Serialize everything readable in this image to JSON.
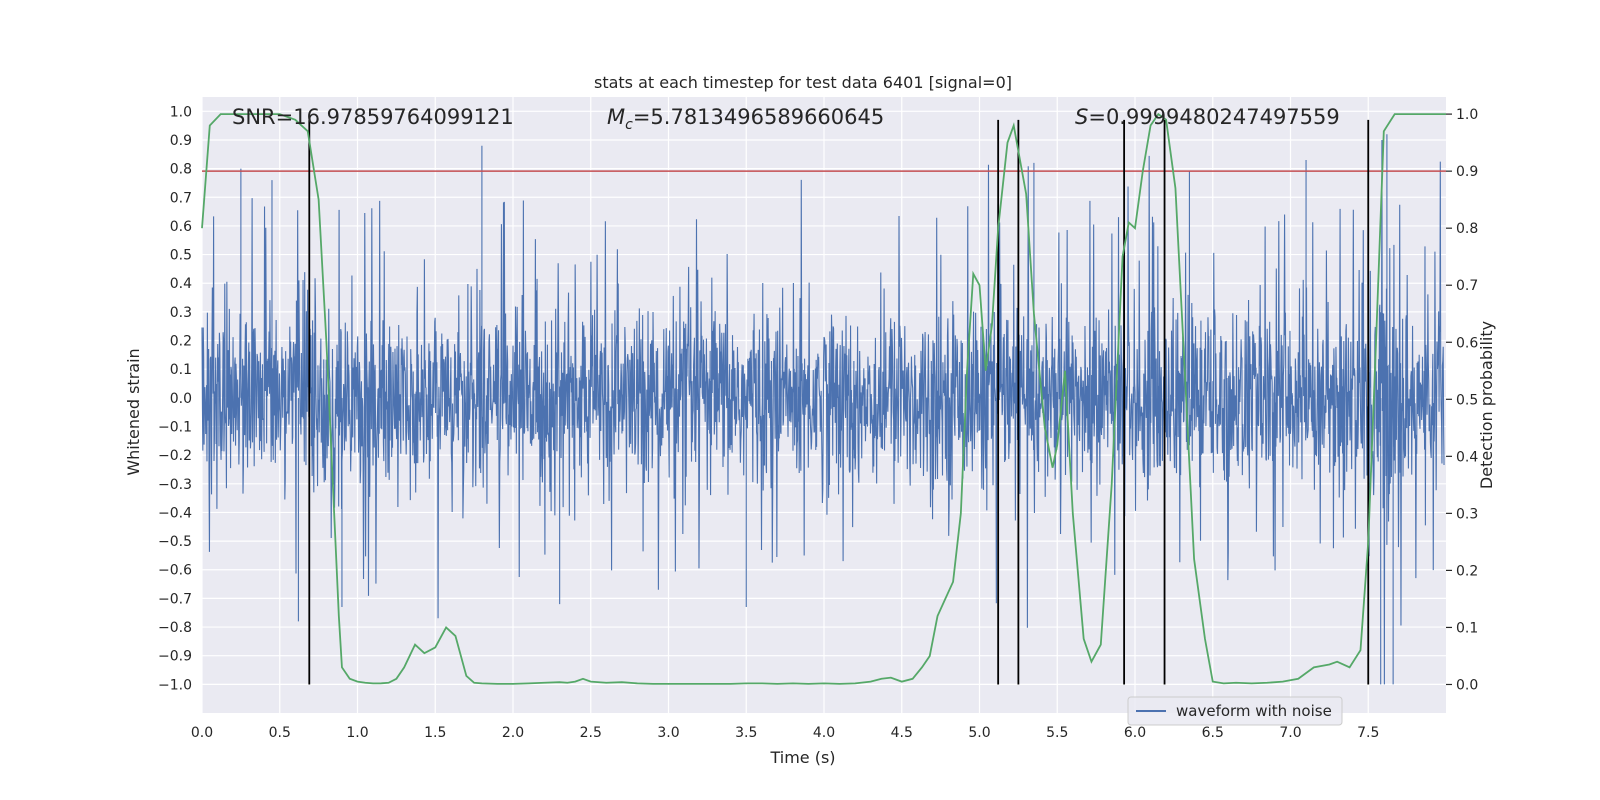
{
  "chart_data": {
    "type": "line",
    "title": "stats at each timestep for test data 6401 [signal=0]",
    "xlabel": "Time (s)",
    "ylabel_left": "Whitened strain",
    "ylabel_right": "Detection probability",
    "xlim": [
      0.0,
      8.0
    ],
    "ylim_left": [
      -1.1,
      1.05
    ],
    "ylim_right": [
      -0.05,
      1.03
    ],
    "x_ticks": [
      "0.0",
      "0.5",
      "1.0",
      "1.5",
      "2.0",
      "2.5",
      "3.0",
      "3.5",
      "4.0",
      "4.5",
      "5.0",
      "5.5",
      "6.0",
      "6.5",
      "7.0",
      "7.5"
    ],
    "y_left_ticks": [
      "1.0",
      "0.9",
      "0.8",
      "0.7",
      "0.6",
      "0.5",
      "0.4",
      "0.3",
      "0.2",
      "0.1",
      "0.0",
      "-0.1",
      "-0.2",
      "-0.3",
      "-0.4",
      "-0.5",
      "-0.6",
      "-0.7",
      "-0.8",
      "-0.9",
      "-1.0"
    ],
    "y_right_ticks": [
      "1.0",
      "0.9",
      "0.8",
      "0.7",
      "0.6",
      "0.5",
      "0.4",
      "0.3",
      "0.2",
      "0.1",
      "0.0"
    ],
    "grid": true,
    "legend_position": "bottom-right",
    "annotations": {
      "snr_text": "SNR=16.97859764099121",
      "mc_symbol": "M",
      "mc_subscript": "c",
      "mc_value": "=5.7813496589660645",
      "s_symbol": "S",
      "s_value": "=0.9999480247497559"
    },
    "series": [
      {
        "name": "waveform with noise",
        "axis": "left",
        "color": "#4c72b0",
        "description_values": "dense noise series, bulk within ±0.4, spikes up to ~0.88 and down to ~-1.0"
      },
      {
        "axis": "right",
        "color": "#55a868",
        "x": [
          0.0,
          0.05,
          0.12,
          0.2,
          0.3,
          0.4,
          0.5,
          0.6,
          0.68,
          0.75,
          0.8,
          0.85,
          0.88,
          0.9,
          0.95,
          1.0,
          1.05,
          1.1,
          1.15,
          1.2,
          1.25,
          1.3,
          1.37,
          1.43,
          1.5,
          1.57,
          1.63,
          1.7,
          1.75,
          1.8,
          1.9,
          2.0,
          2.1,
          2.2,
          2.3,
          2.35,
          2.4,
          2.45,
          2.5,
          2.6,
          2.7,
          2.8,
          2.9,
          3.0,
          3.1,
          3.2,
          3.3,
          3.4,
          3.5,
          3.6,
          3.7,
          3.8,
          3.9,
          4.0,
          4.1,
          4.2,
          4.3,
          4.37,
          4.43,
          4.5,
          4.57,
          4.63,
          4.68,
          4.73,
          4.78,
          4.83,
          4.88,
          4.92,
          4.96,
          5.0,
          5.04,
          5.08,
          5.12,
          5.18,
          5.22,
          5.26,
          5.3,
          5.35,
          5.42,
          5.47,
          5.5,
          5.55,
          5.6,
          5.67,
          5.72,
          5.78,
          5.85,
          5.92,
          5.96,
          6.0,
          6.05,
          6.1,
          6.15,
          6.2,
          6.26,
          6.32,
          6.38,
          6.45,
          6.5,
          6.57,
          6.65,
          6.75,
          6.85,
          6.95,
          7.05,
          7.15,
          7.25,
          7.3,
          7.38,
          7.45,
          7.5,
          7.55,
          7.6,
          7.67,
          7.75,
          7.85,
          7.95,
          8.0
        ],
        "y": [
          0.8,
          0.98,
          1.0,
          1.0,
          1.0,
          1.0,
          1.0,
          0.99,
          0.97,
          0.85,
          0.6,
          0.3,
          0.12,
          0.03,
          0.01,
          0.005,
          0.003,
          0.002,
          0.002,
          0.003,
          0.01,
          0.03,
          0.07,
          0.055,
          0.065,
          0.1,
          0.085,
          0.015,
          0.003,
          0.002,
          0.001,
          0.001,
          0.002,
          0.003,
          0.004,
          0.003,
          0.005,
          0.01,
          0.005,
          0.003,
          0.004,
          0.002,
          0.001,
          0.001,
          0.001,
          0.001,
          0.001,
          0.001,
          0.002,
          0.002,
          0.001,
          0.002,
          0.001,
          0.002,
          0.001,
          0.002,
          0.005,
          0.01,
          0.012,
          0.005,
          0.01,
          0.03,
          0.05,
          0.12,
          0.15,
          0.18,
          0.3,
          0.55,
          0.72,
          0.7,
          0.55,
          0.63,
          0.8,
          0.95,
          0.98,
          0.92,
          0.86,
          0.65,
          0.45,
          0.38,
          0.42,
          0.55,
          0.3,
          0.08,
          0.04,
          0.07,
          0.35,
          0.75,
          0.81,
          0.8,
          0.9,
          0.98,
          1.0,
          0.99,
          0.87,
          0.55,
          0.22,
          0.08,
          0.005,
          0.002,
          0.003,
          0.002,
          0.003,
          0.005,
          0.01,
          0.03,
          0.035,
          0.04,
          0.03,
          0.06,
          0.25,
          0.6,
          0.97,
          1.0,
          1.0,
          1.0,
          1.0,
          1.0
        ]
      }
    ],
    "threshold_line": {
      "axis": "right",
      "value": 0.9,
      "color": "#c44e52"
    },
    "vertical_lines_x": [
      0.69,
      5.12,
      5.25,
      5.93,
      6.19,
      7.5
    ],
    "vertical_lines_ylim_right": [
      0.0,
      0.99
    ]
  }
}
